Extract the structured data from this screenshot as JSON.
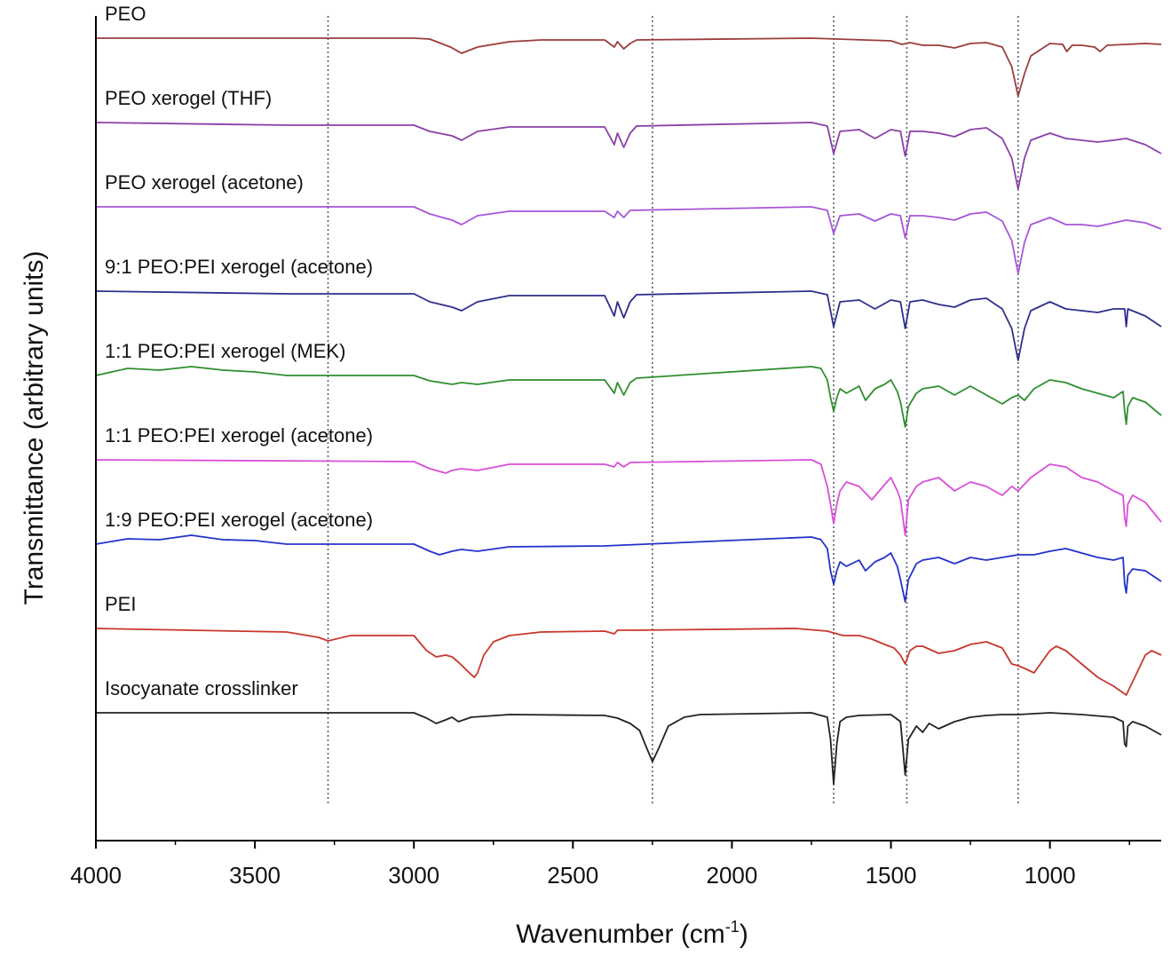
{
  "chart_data": {
    "type": "line",
    "title": "",
    "xlabel": "Wavenumber (cm-1)",
    "xlabel_parts": {
      "base": "Wavenumber (cm",
      "superscript": "-1",
      "close": ")"
    },
    "ylabel": "Transmittance (arbitrary units)",
    "x_reversed": true,
    "xlim": [
      4000,
      650
    ],
    "xticks": [
      4000,
      3500,
      3000,
      2500,
      2000,
      1500,
      1000
    ],
    "grid": false,
    "legend": "none (series labels printed above each trace)",
    "reference_lines_x": [
      3270,
      2250,
      1680,
      1450,
      1100
    ],
    "series": [
      {
        "name": "PEO",
        "color": "#9b3c3c",
        "offset": 0,
        "x": [
          4000,
          3000,
          2950,
          2885,
          2850,
          2800,
          2700,
          2600,
          2400,
          2370,
          2360,
          2340,
          2320,
          2300,
          1750,
          1500,
          1465,
          1440,
          1400,
          1350,
          1300,
          1250,
          1200,
          1150,
          1120,
          1100,
          1080,
          1060,
          1000,
          960,
          947,
          930,
          900,
          860,
          842,
          820,
          760,
          700,
          650
        ],
        "y": [
          0,
          0,
          -1,
          -10,
          -17,
          -10,
          -4,
          -2,
          -2,
          -10,
          -4,
          -12,
          -6,
          -2,
          0,
          -3,
          -7,
          -5,
          -8,
          -8,
          -11,
          -6,
          -5,
          -10,
          -32,
          -65,
          -40,
          -20,
          -6,
          -7,
          -15,
          -8,
          -8,
          -10,
          -15,
          -8,
          -7,
          -6,
          -7
        ]
      },
      {
        "name": "PEO xerogel (THF)",
        "color": "#8b3fa8",
        "offset": 95,
        "x": [
          4000,
          3400,
          3000,
          2950,
          2880,
          2850,
          2800,
          2700,
          2400,
          2370,
          2360,
          2340,
          2320,
          2300,
          1750,
          1700,
          1680,
          1660,
          1600,
          1550,
          1500,
          1470,
          1455,
          1440,
          1400,
          1350,
          1300,
          1250,
          1200,
          1150,
          1120,
          1100,
          1080,
          1060,
          1000,
          950,
          900,
          850,
          800,
          760,
          700,
          650
        ],
        "y": [
          0,
          -3,
          -3,
          -10,
          -15,
          -20,
          -10,
          -5,
          -5,
          -25,
          -12,
          -28,
          -12,
          -4,
          0,
          -4,
          -35,
          -10,
          -8,
          -18,
          -8,
          -10,
          -38,
          -10,
          -10,
          -12,
          -16,
          -8,
          -6,
          -18,
          -40,
          -75,
          -40,
          -20,
          -12,
          -18,
          -20,
          -22,
          -20,
          -18,
          -25,
          -35
        ]
      },
      {
        "name": "PEO xerogel (acetone)",
        "color": "#a855d8",
        "offset": 190,
        "x": [
          4000,
          3000,
          2950,
          2880,
          2850,
          2800,
          2700,
          2400,
          2370,
          2360,
          2340,
          2320,
          1750,
          1700,
          1680,
          1660,
          1600,
          1550,
          1500,
          1470,
          1455,
          1440,
          1400,
          1350,
          1300,
          1250,
          1200,
          1150,
          1120,
          1100,
          1080,
          1060,
          1000,
          950,
          900,
          850,
          760,
          700,
          650
        ],
        "y": [
          0,
          0,
          -8,
          -15,
          -20,
          -10,
          -5,
          -5,
          -12,
          -5,
          -12,
          -4,
          0,
          -4,
          -30,
          -10,
          -8,
          -16,
          -8,
          -10,
          -35,
          -10,
          -10,
          -12,
          -15,
          -8,
          -6,
          -16,
          -38,
          -75,
          -40,
          -20,
          -12,
          -20,
          -20,
          -22,
          -15,
          -18,
          -25
        ]
      },
      {
        "name": "9:1 PEO:PEI xerogel (acetone)",
        "color": "#2e2f8c",
        "offset": 285,
        "x": [
          4000,
          3400,
          3000,
          2950,
          2880,
          2850,
          2800,
          2700,
          2400,
          2370,
          2360,
          2340,
          2320,
          2300,
          1750,
          1700,
          1680,
          1660,
          1600,
          1550,
          1500,
          1470,
          1455,
          1440,
          1400,
          1350,
          1300,
          1250,
          1200,
          1150,
          1120,
          1100,
          1080,
          1060,
          1000,
          950,
          900,
          850,
          800,
          765,
          760,
          755,
          700,
          650
        ],
        "y": [
          0,
          -3,
          -3,
          -12,
          -18,
          -22,
          -12,
          -5,
          -5,
          -28,
          -12,
          -30,
          -12,
          -4,
          0,
          -4,
          -40,
          -12,
          -10,
          -20,
          -10,
          -12,
          -42,
          -12,
          -10,
          -15,
          -18,
          -10,
          -8,
          -20,
          -42,
          -78,
          -42,
          -22,
          -12,
          -20,
          -22,
          -24,
          -20,
          -20,
          -40,
          -20,
          -28,
          -40
        ]
      },
      {
        "name": "1:1 PEO:PEI xerogel (MEK)",
        "color": "#2f8f2f",
        "offset": 380,
        "x": [
          4000,
          3900,
          3800,
          3700,
          3600,
          3500,
          3400,
          3000,
          2950,
          2880,
          2850,
          2800,
          2700,
          2400,
          2370,
          2360,
          2340,
          2320,
          2300,
          1750,
          1720,
          1700,
          1690,
          1680,
          1670,
          1660,
          1640,
          1600,
          1580,
          1550,
          1520,
          1500,
          1480,
          1470,
          1455,
          1445,
          1420,
          1400,
          1350,
          1300,
          1250,
          1200,
          1150,
          1120,
          1100,
          1080,
          1050,
          1000,
          950,
          900,
          850,
          800,
          770,
          765,
          760,
          755,
          740,
          700,
          650
        ],
        "y": [
          0,
          8,
          6,
          10,
          6,
          4,
          0,
          0,
          -6,
          -10,
          -8,
          -10,
          -5,
          -5,
          -20,
          -8,
          -22,
          -8,
          -3,
          10,
          8,
          -5,
          -25,
          -40,
          -25,
          -15,
          -20,
          -12,
          -28,
          -15,
          -10,
          -5,
          -18,
          -30,
          -58,
          -35,
          -20,
          -15,
          -12,
          -22,
          -12,
          -22,
          -32,
          -25,
          -22,
          -28,
          -15,
          -5,
          -8,
          -15,
          -20,
          -25,
          -18,
          -40,
          -55,
          -35,
          -25,
          -30,
          -45
        ]
      },
      {
        "name": "1:1 PEO:PEI xerogel (acetone)",
        "color": "#d94fd9",
        "offset": 475,
        "x": [
          4000,
          3000,
          2950,
          2900,
          2880,
          2850,
          2800,
          2700,
          2400,
          2370,
          2360,
          2340,
          2320,
          1750,
          1720,
          1700,
          1690,
          1680,
          1670,
          1660,
          1640,
          1600,
          1560,
          1520,
          1500,
          1480,
          1470,
          1455,
          1445,
          1420,
          1400,
          1350,
          1300,
          1250,
          1200,
          1150,
          1120,
          1100,
          1060,
          1000,
          950,
          900,
          850,
          800,
          770,
          765,
          760,
          755,
          740,
          700,
          650
        ],
        "y": [
          0,
          -2,
          -10,
          -15,
          -12,
          -10,
          -12,
          -5,
          -5,
          -8,
          -3,
          -8,
          -3,
          0,
          -5,
          -30,
          -50,
          -72,
          -50,
          -35,
          -25,
          -30,
          -45,
          -28,
          -20,
          -35,
          -45,
          -85,
          -45,
          -30,
          -25,
          -20,
          -35,
          -25,
          -30,
          -40,
          -30,
          -35,
          -20,
          -5,
          -8,
          -20,
          -25,
          -35,
          -40,
          -65,
          -75,
          -50,
          -40,
          -48,
          -70
        ]
      },
      {
        "name": "1:9 PEO:PEI xerogel (acetone)",
        "color": "#2432c9",
        "offset": 570,
        "x": [
          4000,
          3900,
          3800,
          3700,
          3600,
          3500,
          3400,
          3000,
          2950,
          2920,
          2880,
          2850,
          2800,
          2700,
          2400,
          1750,
          1720,
          1700,
          1690,
          1680,
          1670,
          1660,
          1640,
          1600,
          1580,
          1550,
          1520,
          1500,
          1480,
          1470,
          1455,
          1445,
          1420,
          1400,
          1350,
          1300,
          1250,
          1200,
          1150,
          1100,
          1050,
          1000,
          950,
          900,
          850,
          800,
          770,
          765,
          760,
          755,
          740,
          700,
          650
        ],
        "y": [
          0,
          6,
          5,
          10,
          5,
          4,
          0,
          0,
          -8,
          -12,
          -8,
          -6,
          -8,
          -3,
          -2,
          8,
          5,
          -5,
          -30,
          -45,
          -30,
          -20,
          -25,
          -18,
          -30,
          -20,
          -15,
          -10,
          -25,
          -40,
          -65,
          -40,
          -22,
          -18,
          -15,
          -22,
          -15,
          -18,
          -15,
          -12,
          -12,
          -8,
          -5,
          -10,
          -15,
          -18,
          -15,
          -45,
          -55,
          -35,
          -28,
          -30,
          -42
        ]
      },
      {
        "name": "PEI",
        "color": "#c8372d",
        "offset": 665,
        "x": [
          4000,
          3400,
          3300,
          3270,
          3200,
          3000,
          2960,
          2930,
          2900,
          2880,
          2860,
          2820,
          2810,
          2800,
          2780,
          2750,
          2700,
          2600,
          2400,
          2370,
          2360,
          2300,
          1800,
          1700,
          1650,
          1600,
          1560,
          1520,
          1490,
          1470,
          1455,
          1440,
          1420,
          1400,
          1350,
          1300,
          1250,
          1200,
          1150,
          1120,
          1100,
          1080,
          1050,
          1000,
          980,
          950,
          900,
          850,
          800,
          760,
          740,
          700,
          680,
          650
        ],
        "y": [
          0,
          -4,
          -10,
          -14,
          -8,
          -8,
          -25,
          -32,
          -30,
          -32,
          -38,
          -52,
          -55,
          -50,
          -30,
          -15,
          -8,
          -4,
          -3,
          -6,
          -2,
          -2,
          0,
          -3,
          -8,
          -8,
          -12,
          -18,
          -22,
          -30,
          -40,
          -25,
          -20,
          -20,
          -28,
          -25,
          -18,
          -15,
          -22,
          -40,
          -42,
          -45,
          -50,
          -25,
          -20,
          -25,
          -40,
          -55,
          -65,
          -75,
          -60,
          -30,
          -25,
          -30
        ]
      },
      {
        "name": "Isocyanate crosslinker",
        "color": "#222222",
        "offset": 760,
        "x": [
          4000,
          3000,
          2960,
          2930,
          2900,
          2880,
          2860,
          2820,
          2700,
          2400,
          2360,
          2320,
          2290,
          2270,
          2250,
          2230,
          2200,
          2150,
          2100,
          1750,
          1700,
          1690,
          1680,
          1670,
          1660,
          1640,
          1600,
          1500,
          1470,
          1455,
          1445,
          1420,
          1400,
          1380,
          1350,
          1300,
          1250,
          1200,
          1150,
          1100,
          1000,
          900,
          800,
          770,
          765,
          760,
          755,
          740,
          700,
          650
        ],
        "y": [
          0,
          0,
          -6,
          -12,
          -8,
          -5,
          -10,
          -5,
          -2,
          -3,
          -6,
          -12,
          -20,
          -38,
          -55,
          -40,
          -15,
          -5,
          -2,
          0,
          -5,
          -30,
          -80,
          -35,
          -10,
          -5,
          -3,
          -2,
          -10,
          -70,
          -30,
          -15,
          -22,
          -12,
          -18,
          -10,
          -5,
          -3,
          -2,
          -2,
          0,
          -2,
          -5,
          -10,
          -35,
          -38,
          -15,
          -10,
          -15,
          -25
        ]
      }
    ]
  }
}
